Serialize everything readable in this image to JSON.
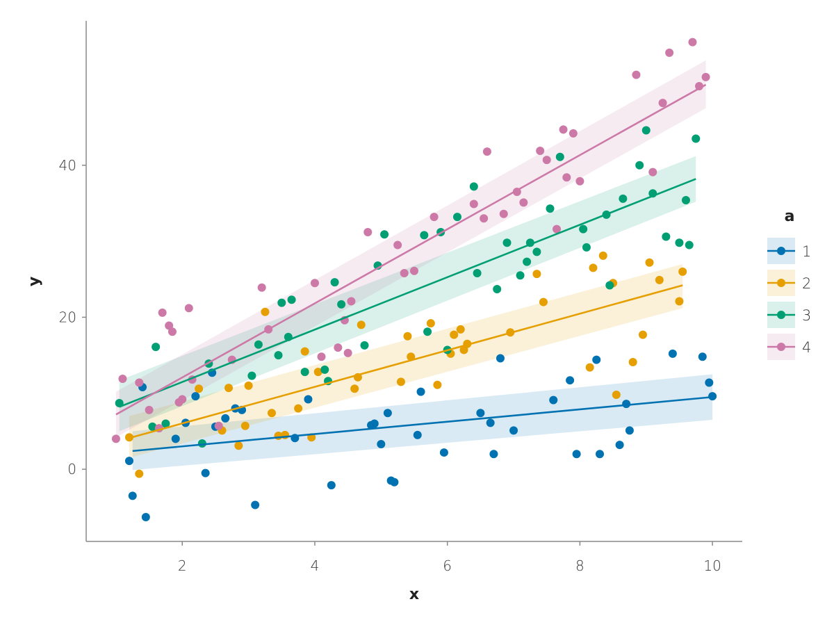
{
  "chart_data": {
    "type": "scatter",
    "xlabel": "x",
    "ylabel": "y",
    "xlim": [
      0.55,
      10.45
    ],
    "ylim": [
      -9.5,
      59
    ],
    "xticks": [
      2,
      4,
      6,
      8,
      10
    ],
    "yticks": [
      0,
      20,
      40
    ],
    "grid": false,
    "legend": {
      "title": "a",
      "placement": "right"
    },
    "series": [
      {
        "name": "1",
        "color": "#0072B2",
        "fit": {
          "x": [
            1.25,
            10.0
          ],
          "y": [
            2.4,
            9.5
          ],
          "band_lower": [
            -0.1,
            6.5
          ],
          "band_upper": [
            5.0,
            12.5
          ]
        },
        "points": [
          [
            1.2,
            1.1
          ],
          [
            1.25,
            -3.5
          ],
          [
            1.4,
            10.8
          ],
          [
            1.45,
            -6.3
          ],
          [
            1.9,
            4.0
          ],
          [
            2.05,
            6.1
          ],
          [
            2.2,
            9.6
          ],
          [
            2.35,
            -0.5
          ],
          [
            2.45,
            12.7
          ],
          [
            2.5,
            5.6
          ],
          [
            2.65,
            6.7
          ],
          [
            2.8,
            8.0
          ],
          [
            2.9,
            7.8
          ],
          [
            3.1,
            -4.7
          ],
          [
            3.7,
            4.1
          ],
          [
            3.9,
            9.2
          ],
          [
            4.25,
            -2.1
          ],
          [
            4.85,
            5.8
          ],
          [
            4.9,
            6.0
          ],
          [
            5.0,
            3.3
          ],
          [
            5.1,
            7.4
          ],
          [
            5.15,
            -1.5
          ],
          [
            5.2,
            -1.7
          ],
          [
            5.55,
            4.5
          ],
          [
            5.6,
            10.2
          ],
          [
            5.95,
            2.2
          ],
          [
            6.5,
            7.4
          ],
          [
            6.65,
            6.1
          ],
          [
            6.7,
            2.0
          ],
          [
            6.8,
            14.6
          ],
          [
            7.0,
            5.1
          ],
          [
            7.6,
            9.1
          ],
          [
            7.85,
            11.7
          ],
          [
            7.95,
            2.0
          ],
          [
            8.25,
            14.4
          ],
          [
            8.3,
            2.0
          ],
          [
            8.6,
            3.2
          ],
          [
            8.7,
            8.6
          ],
          [
            8.75,
            5.1
          ],
          [
            9.4,
            15.2
          ],
          [
            9.85,
            14.8
          ],
          [
            9.95,
            11.4
          ],
          [
            10.0,
            9.6
          ]
        ]
      },
      {
        "name": "2",
        "color": "#E69F00",
        "fit": {
          "x": [
            1.2,
            9.55
          ],
          "y": [
            4.1,
            24.2
          ],
          "band_lower": [
            1.5,
            21.2
          ],
          "band_upper": [
            7.0,
            27.0
          ]
        },
        "points": [
          [
            1.2,
            4.2
          ],
          [
            1.35,
            -0.6
          ],
          [
            2.25,
            10.6
          ],
          [
            2.6,
            5.1
          ],
          [
            2.7,
            10.7
          ],
          [
            2.85,
            3.1
          ],
          [
            2.95,
            5.7
          ],
          [
            3.0,
            11.0
          ],
          [
            3.25,
            20.7
          ],
          [
            3.35,
            7.4
          ],
          [
            3.45,
            4.4
          ],
          [
            3.55,
            4.5
          ],
          [
            3.75,
            8.0
          ],
          [
            3.85,
            15.5
          ],
          [
            3.95,
            4.2
          ],
          [
            4.05,
            12.8
          ],
          [
            4.6,
            10.6
          ],
          [
            4.65,
            12.1
          ],
          [
            4.7,
            19.0
          ],
          [
            5.3,
            11.5
          ],
          [
            5.4,
            17.5
          ],
          [
            5.45,
            14.8
          ],
          [
            5.75,
            19.2
          ],
          [
            5.85,
            11.1
          ],
          [
            6.05,
            15.2
          ],
          [
            6.1,
            17.7
          ],
          [
            6.2,
            18.4
          ],
          [
            6.25,
            15.7
          ],
          [
            6.3,
            16.5
          ],
          [
            6.95,
            18.0
          ],
          [
            7.35,
            25.7
          ],
          [
            7.45,
            22.0
          ],
          [
            8.15,
            13.4
          ],
          [
            8.2,
            26.5
          ],
          [
            8.35,
            28.1
          ],
          [
            8.5,
            24.5
          ],
          [
            8.55,
            9.8
          ],
          [
            8.8,
            14.1
          ],
          [
            8.95,
            17.7
          ],
          [
            9.05,
            27.2
          ],
          [
            9.2,
            24.9
          ],
          [
            9.5,
            22.1
          ],
          [
            9.55,
            26.0
          ]
        ]
      },
      {
        "name": "3",
        "color": "#009E73",
        "fit": {
          "x": [
            1.05,
            9.75
          ],
          "y": [
            8.2,
            38.2
          ],
          "band_lower": [
            5.0,
            35.2
          ],
          "band_upper": [
            11.7,
            41.2
          ]
        },
        "points": [
          [
            1.05,
            8.7
          ],
          [
            1.55,
            5.6
          ],
          [
            1.6,
            16.1
          ],
          [
            1.75,
            6.0
          ],
          [
            2.3,
            3.4
          ],
          [
            2.4,
            13.9
          ],
          [
            3.05,
            12.3
          ],
          [
            3.15,
            16.4
          ],
          [
            3.45,
            15.0
          ],
          [
            3.5,
            21.9
          ],
          [
            3.6,
            17.4
          ],
          [
            3.65,
            22.3
          ],
          [
            3.85,
            12.8
          ],
          [
            4.15,
            13.1
          ],
          [
            4.2,
            11.6
          ],
          [
            4.3,
            24.6
          ],
          [
            4.4,
            21.7
          ],
          [
            4.75,
            16.3
          ],
          [
            4.95,
            26.8
          ],
          [
            5.05,
            30.9
          ],
          [
            5.65,
            30.8
          ],
          [
            5.7,
            18.1
          ],
          [
            5.9,
            31.2
          ],
          [
            6.0,
            15.7
          ],
          [
            6.15,
            33.2
          ],
          [
            6.4,
            37.2
          ],
          [
            6.45,
            25.8
          ],
          [
            6.75,
            23.7
          ],
          [
            6.9,
            29.8
          ],
          [
            7.1,
            25.5
          ],
          [
            7.2,
            27.3
          ],
          [
            7.25,
            29.8
          ],
          [
            7.35,
            28.6
          ],
          [
            7.55,
            34.3
          ],
          [
            7.7,
            41.1
          ],
          [
            8.05,
            31.6
          ],
          [
            8.1,
            29.2
          ],
          [
            8.4,
            33.5
          ],
          [
            8.45,
            24.2
          ],
          [
            8.65,
            35.6
          ],
          [
            8.9,
            40.0
          ],
          [
            9.0,
            44.6
          ],
          [
            9.1,
            36.3
          ],
          [
            9.3,
            30.6
          ],
          [
            9.5,
            29.8
          ],
          [
            9.6,
            35.4
          ],
          [
            9.65,
            29.5
          ],
          [
            9.75,
            43.5
          ]
        ]
      },
      {
        "name": "4",
        "color": "#CC79A7",
        "fit": {
          "x": [
            1.0,
            9.9
          ],
          "y": [
            7.2,
            50.6
          ],
          "band_lower": [
            4.2,
            47.5
          ],
          "band_upper": [
            10.2,
            53.8
          ]
        },
        "points": [
          [
            1.0,
            4.0
          ],
          [
            1.1,
            11.9
          ],
          [
            1.35,
            11.4
          ],
          [
            1.5,
            7.8
          ],
          [
            1.65,
            5.4
          ],
          [
            1.7,
            20.6
          ],
          [
            1.8,
            18.9
          ],
          [
            1.85,
            18.1
          ],
          [
            1.95,
            8.8
          ],
          [
            2.0,
            9.2
          ],
          [
            2.1,
            21.2
          ],
          [
            2.15,
            11.8
          ],
          [
            2.55,
            5.7
          ],
          [
            2.75,
            14.4
          ],
          [
            3.2,
            23.9
          ],
          [
            3.3,
            18.4
          ],
          [
            4.0,
            24.5
          ],
          [
            4.1,
            14.8
          ],
          [
            4.35,
            16.0
          ],
          [
            4.45,
            19.6
          ],
          [
            4.5,
            15.3
          ],
          [
            4.55,
            22.1
          ],
          [
            4.8,
            31.2
          ],
          [
            5.25,
            29.5
          ],
          [
            5.35,
            25.8
          ],
          [
            5.5,
            26.1
          ],
          [
            5.8,
            33.2
          ],
          [
            6.4,
            34.9
          ],
          [
            6.55,
            33.0
          ],
          [
            6.6,
            41.8
          ],
          [
            6.85,
            33.6
          ],
          [
            7.05,
            36.5
          ],
          [
            7.15,
            35.1
          ],
          [
            7.4,
            41.9
          ],
          [
            7.5,
            40.7
          ],
          [
            7.65,
            31.6
          ],
          [
            7.75,
            44.7
          ],
          [
            7.8,
            38.4
          ],
          [
            7.9,
            44.2
          ],
          [
            8.0,
            37.9
          ],
          [
            8.85,
            51.9
          ],
          [
            9.1,
            39.1
          ],
          [
            9.25,
            48.2
          ],
          [
            9.35,
            54.8
          ],
          [
            9.7,
            56.2
          ],
          [
            9.8,
            50.4
          ],
          [
            9.9,
            51.6
          ]
        ]
      }
    ]
  }
}
